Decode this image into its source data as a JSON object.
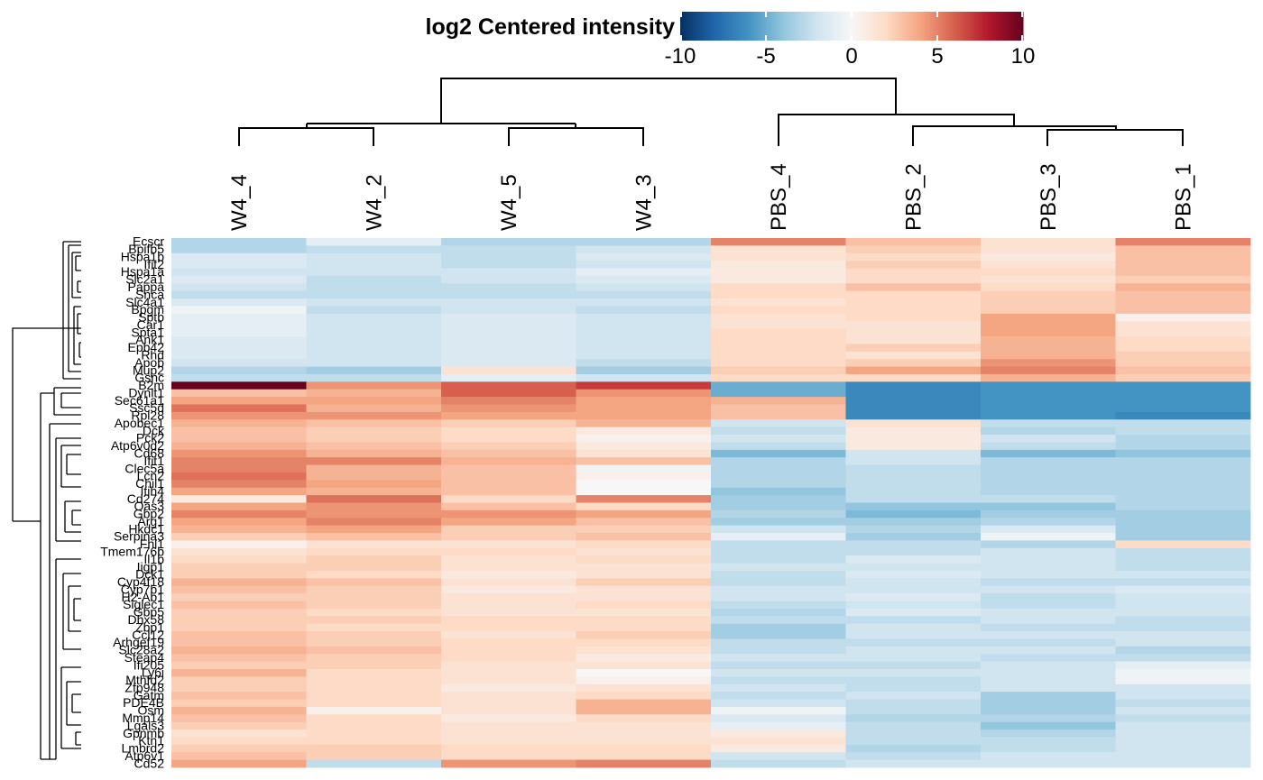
{
  "chart_data": {
    "type": "heatmap",
    "title": "log2 Centered intensity",
    "colorbar": {
      "ticks": [
        "-10",
        "-5",
        "0",
        "5",
        "10"
      ],
      "range": [
        -10,
        10
      ],
      "colors": [
        "#053061",
        "#2166ac",
        "#4393c3",
        "#92c5de",
        "#d1e5f0",
        "#f7f7f7",
        "#fddbc7",
        "#f4a582",
        "#d6604d",
        "#b2182b",
        "#67001f"
      ]
    },
    "columns": [
      "W4_4",
      "W4_2",
      "W4_5",
      "W4_3",
      "PBS_4",
      "PBS_2",
      "PBS_3",
      "PBS_1"
    ],
    "row_labels": [
      "Ecscr",
      "Bpifb5",
      "Hspa1b",
      "Ifit2",
      "Hspa1a",
      "Slc2a1",
      "Pappa",
      "Snca",
      "Slc4a1",
      "Bpgm",
      "Sptb",
      "Car1",
      "Spta1",
      "Ank1",
      "Epb42",
      "Rhd",
      "Apob",
      "Mup2",
      "Gsnc",
      "B2m",
      "Dynlt1",
      "Sec61a1",
      "Ssc5d",
      "Rpl28",
      "Apobec1",
      "Dck",
      "Pck2",
      "Atp6v0d2",
      "Cd68",
      "Ifit1",
      "Clec5a",
      "Lcn2",
      "Chil1",
      "Itih4",
      "Cd274",
      "Oas3",
      "Gbp2",
      "Arg1",
      "Hkdc1",
      "Serpina3",
      "Fhl1",
      "Tmem176b",
      "Il1b",
      "Iigp1",
      "Dck1",
      "Cyp4f18",
      "Cyp7b1",
      "H2-Ab1",
      "Siglec1",
      "Gbp5",
      "Dhx58",
      "Zbp1",
      "Ccl12",
      "Arhgef19",
      "Slc28a2",
      "Steap4",
      "Ifi205",
      "Ly6i",
      "Mthfd2",
      "Zfp948",
      "Gatm",
      "PDE4B",
      "Osm",
      "Mmp14",
      "Lgals3",
      "Gpnmb",
      "Ktn1",
      "Lmbrd2",
      "Atp6v1",
      "Cd52"
    ],
    "values": [
      [
        -3,
        -1,
        -3,
        -3,
        5,
        3,
        1.5,
        5
      ],
      [
        -3,
        -2.5,
        -2.5,
        -2,
        1.5,
        2.5,
        1.5,
        3
      ],
      [
        -1.5,
        -2,
        -2.5,
        -1.5,
        1.5,
        2,
        1,
        3
      ],
      [
        -1.5,
        -2,
        -2.5,
        -2,
        1,
        2.5,
        1.5,
        3
      ],
      [
        -2,
        -2,
        -2,
        -1,
        1,
        2,
        2,
        3
      ],
      [
        -1.5,
        -2.5,
        -2,
        -1.5,
        1,
        2,
        1.5,
        2.5
      ],
      [
        -2,
        -2.5,
        -2.5,
        -2,
        2,
        3,
        2,
        3.5
      ],
      [
        -2.5,
        -2.5,
        -2.5,
        -2.5,
        2,
        2,
        2.5,
        3
      ],
      [
        -1.5,
        -2,
        -2,
        -2,
        1.5,
        2,
        2.5,
        3
      ],
      [
        -0.5,
        -2.5,
        -2,
        -2.5,
        2,
        2,
        2.5,
        3
      ],
      [
        -1,
        -2,
        -1.5,
        -2,
        1.5,
        2,
        4,
        0.5
      ],
      [
        -1,
        -2,
        -1.5,
        -2,
        1.5,
        1.5,
        4,
        1.5
      ],
      [
        -1,
        -2,
        -1.5,
        -2,
        2,
        1.5,
        4,
        1.5
      ],
      [
        -1.5,
        -2,
        -1.5,
        -2,
        2,
        1.5,
        3.5,
        2
      ],
      [
        -1.5,
        -2,
        -1.5,
        -2,
        2,
        2.5,
        3.5,
        2
      ],
      [
        -1.5,
        -2,
        -1.5,
        -2,
        2,
        1.5,
        3.5,
        2.5
      ],
      [
        -2,
        -2,
        -1.5,
        -2.5,
        2,
        2.5,
        4.5,
        2.5
      ],
      [
        -3,
        -3.5,
        1.5,
        -3.5,
        2.5,
        4,
        5,
        3
      ],
      [
        -2.5,
        -2.5,
        -1,
        -2,
        2,
        2,
        3.5,
        2.5
      ],
      [
        10,
        4.5,
        6,
        7,
        -5,
        -6.5,
        -6,
        -6
      ],
      [
        3,
        3.5,
        6,
        4.5,
        -5,
        -6.5,
        -6,
        -6
      ],
      [
        4,
        4,
        5,
        4,
        3.5,
        -6.5,
        -6,
        -6
      ],
      [
        5.5,
        3.5,
        4.5,
        4,
        3,
        -6.5,
        -6,
        -6
      ],
      [
        4.5,
        4.5,
        4,
        4,
        3,
        -6.5,
        -6,
        -6.5
      ],
      [
        3.5,
        3,
        2.5,
        3.5,
        -2,
        1.5,
        -2.5,
        -2.5
      ],
      [
        3,
        2.5,
        2,
        1,
        -2.5,
        1,
        -3,
        -2.5
      ],
      [
        3,
        2.5,
        2,
        0.5,
        -2,
        1,
        -2,
        -3
      ],
      [
        3.5,
        3,
        2.5,
        1,
        -2.5,
        1,
        -2.5,
        -3
      ],
      [
        4.5,
        3.5,
        3,
        1.5,
        -4.5,
        -2,
        -4.5,
        -4
      ],
      [
        5,
        5,
        3.5,
        3,
        -3,
        -2,
        -3,
        -3
      ],
      [
        5,
        3.5,
        3,
        -0.5,
        -3,
        -2.5,
        -3,
        -3
      ],
      [
        5.5,
        3.5,
        3,
        0.5,
        -3,
        -2.5,
        -3,
        -3
      ],
      [
        5,
        4,
        3,
        0,
        -3,
        -2.5,
        -3,
        -3
      ],
      [
        4,
        3.5,
        3,
        0,
        -4,
        -2.5,
        -3,
        -3
      ],
      [
        1,
        5.5,
        2,
        5,
        -3.5,
        -2.5,
        -2.5,
        -3
      ],
      [
        4,
        4.5,
        3,
        2,
        -3.5,
        -4,
        -4,
        -3
      ],
      [
        5,
        4.5,
        4.5,
        4,
        -3,
        -4.5,
        -3.5,
        -3.5
      ],
      [
        4,
        5,
        4,
        3,
        -3.5,
        -3.5,
        -3,
        -3.5
      ],
      [
        3.5,
        4,
        2.5,
        2.5,
        -2,
        -3,
        -1.5,
        -3.5
      ],
      [
        2.5,
        3,
        2.5,
        3,
        -1,
        -3.5,
        -0.5,
        -3.5
      ],
      [
        0.5,
        1.5,
        1.5,
        2,
        -2.5,
        -2.5,
        -3,
        2
      ],
      [
        1.5,
        2,
        2,
        1.5,
        -2.5,
        -2.5,
        -2,
        -2.5
      ],
      [
        2,
        2.5,
        1.5,
        2,
        -2.5,
        -1.5,
        -2,
        -2.5
      ],
      [
        2.5,
        2.5,
        1.5,
        1.5,
        -2,
        -2,
        -2,
        -2.5
      ],
      [
        2.5,
        2,
        1,
        1.5,
        -2.5,
        -1.5,
        -2,
        -2
      ],
      [
        3.5,
        3,
        1.5,
        2.5,
        -2.5,
        -2,
        -2.5,
        -2.5
      ],
      [
        3,
        2.5,
        1,
        1.5,
        -2,
        -2,
        -2,
        -1.5
      ],
      [
        2.5,
        2.5,
        1.5,
        1.5,
        -2,
        -1.5,
        -2.5,
        -2
      ],
      [
        3,
        2.5,
        1.5,
        2,
        -2.5,
        -2,
        -2.5,
        -2
      ],
      [
        2.5,
        2,
        1.5,
        1.5,
        -3,
        -1.5,
        -2,
        -2
      ],
      [
        2.5,
        2.5,
        2,
        2,
        -2.5,
        -2.5,
        -2,
        -2.5
      ],
      [
        2.5,
        2,
        2,
        2,
        -3.5,
        -2,
        -2.5,
        -2.5
      ],
      [
        3,
        2.5,
        1.5,
        2.5,
        -3.5,
        -2,
        -2,
        -2
      ],
      [
        3,
        2.5,
        2,
        2,
        -2.5,
        -2.5,
        -2.5,
        -2
      ],
      [
        3.5,
        3,
        2,
        1.5,
        -2.5,
        -2,
        -2,
        -3
      ],
      [
        3,
        2.5,
        2,
        1,
        -2,
        -2,
        -2.5,
        -2.5
      ],
      [
        2.5,
        2.5,
        1.5,
        1.5,
        -2.5,
        -2.5,
        -2,
        -1
      ],
      [
        3.5,
        2,
        1.5,
        0,
        -2,
        -2,
        -2,
        -0.5
      ],
      [
        2.5,
        2,
        1.5,
        0.5,
        -2.5,
        -2.5,
        -2,
        -0.5
      ],
      [
        2.5,
        2,
        1,
        1.5,
        -2,
        -2.5,
        -2,
        -2
      ],
      [
        3,
        2,
        1.5,
        2,
        -2.5,
        -2,
        -3.5,
        -2
      ],
      [
        2.5,
        2,
        1.5,
        3.5,
        -2,
        -2.5,
        -3.5,
        -2.5
      ],
      [
        3.5,
        0.5,
        1.5,
        3.5,
        -0.5,
        -2.5,
        -3.5,
        -2
      ],
      [
        3,
        2,
        1,
        2,
        -1.5,
        -3,
        -3,
        -2.5
      ],
      [
        2.5,
        2,
        1.5,
        1.5,
        -1,
        -2.5,
        -4,
        -2
      ],
      [
        1.5,
        2,
        1.5,
        1.5,
        1,
        -2.5,
        -3,
        -2
      ],
      [
        2,
        2,
        1.5,
        1.5,
        1.5,
        -2.5,
        -2.5,
        -2
      ],
      [
        2.5,
        2.5,
        2,
        2,
        1,
        -3,
        -2.5,
        -2
      ],
      [
        3,
        2.5,
        2,
        2,
        -2,
        -2.5,
        -2,
        -2
      ],
      [
        4,
        -2.5,
        4.5,
        5,
        -2.5,
        -2,
        -2,
        -2
      ]
    ]
  }
}
